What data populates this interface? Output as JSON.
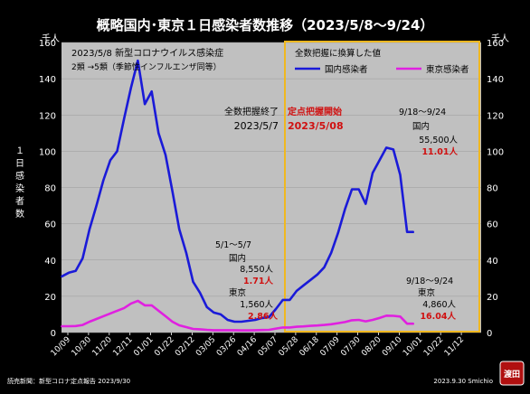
{
  "title": "概略国内･東京１日感染者数推移（2023/5/8〜9/24）",
  "unit_left": "千人",
  "unit_right": "千人",
  "ylabel": "１日感染者数",
  "note_top_left_1": "2023/5/8 新型コロナウイルス感染症",
  "note_top_left_2": "2類 →5類（季節性インフルエンザ同等）",
  "note_end_label": "全数把握終了",
  "note_end_date": "2023/5/7",
  "note_start_label": "定点把握開始",
  "note_start_date": "2023/5/08",
  "legend": {
    "title": "全数把握に換算した値",
    "national": "国内感染者",
    "tokyo": "東京感染者"
  },
  "annotation_may": {
    "period": "5/1〜5/7",
    "national_label": "国内",
    "national_value": "8,550人",
    "national_ratio": "1.71人",
    "tokyo_label": "東京",
    "tokyo_value": "1,560人",
    "tokyo_ratio": "2.86人"
  },
  "annotation_sep_national": {
    "period": "9/18〜9/24",
    "label": "国内",
    "value": "55,500人",
    "ratio": "11.01人"
  },
  "annotation_sep_tokyo": {
    "period": "9/18〜9/24",
    "label": "東京",
    "value": "4,860人",
    "ratio": "16.04人"
  },
  "source": "読売新聞：新型コロナ定点報告  2023/9/30",
  "credit": "2023.9.30  Smichio",
  "stamp": "渡田",
  "colors": {
    "background": "#000000",
    "plot": "#c0c0c0",
    "national": "#1a1ad8",
    "tokyo": "#e020e0",
    "highlight_box": "#f0b820",
    "red_text": "#d01010"
  },
  "chart_data": {
    "type": "line",
    "x_tick_labels": [
      "10/09",
      "10/30",
      "11/20",
      "12/11",
      "01/01",
      "01/22",
      "02/12",
      "03/05",
      "03/26",
      "04/16",
      "05/07",
      "05/28",
      "06/18",
      "07/09",
      "07/30",
      "08/20",
      "09/10",
      "10/01",
      "10/22",
      "11/12"
    ],
    "ylim": [
      0,
      160
    ],
    "yticks": [
      0,
      20,
      40,
      60,
      80,
      100,
      120,
      140,
      160
    ],
    "y_unit": "千人",
    "series": [
      {
        "name": "国内感染者",
        "x": [
          "10/03",
          "10/10",
          "10/17",
          "10/24",
          "10/31",
          "11/07",
          "11/14",
          "11/21",
          "11/28",
          "12/05",
          "12/12",
          "12/19",
          "12/26",
          "01/02",
          "01/09",
          "01/16",
          "01/23",
          "01/30",
          "02/06",
          "02/13",
          "02/20",
          "02/27",
          "03/06",
          "03/13",
          "03/20",
          "03/27",
          "04/03",
          "04/10",
          "04/17",
          "04/24",
          "05/01",
          "05/08",
          "05/15",
          "05/22",
          "05/29",
          "06/05",
          "06/12",
          "06/19",
          "06/26",
          "07/03",
          "07/10",
          "07/17",
          "07/24",
          "07/31",
          "08/07",
          "08/14",
          "08/21",
          "08/28",
          "09/04",
          "09/11",
          "09/18",
          "09/24"
        ],
        "values": [
          31,
          33,
          34,
          41,
          57,
          70,
          84,
          95,
          100,
          118,
          135,
          150,
          126,
          133,
          110,
          98,
          78,
          57,
          44,
          28,
          22,
          14,
          11,
          10,
          7,
          6,
          6,
          6.5,
          7,
          8,
          8.5,
          13,
          18,
          18,
          23,
          26,
          29,
          32,
          36,
          44,
          55,
          68,
          79,
          79,
          71,
          88,
          95,
          102,
          101,
          87,
          55.5,
          55.5
        ]
      },
      {
        "name": "東京感染者",
        "x": [
          "10/03",
          "10/10",
          "10/17",
          "10/24",
          "10/31",
          "11/07",
          "11/14",
          "11/21",
          "11/28",
          "12/05",
          "12/12",
          "12/19",
          "12/26",
          "01/02",
          "01/09",
          "01/16",
          "01/23",
          "01/30",
          "02/06",
          "02/13",
          "02/20",
          "02/27",
          "03/06",
          "03/13",
          "03/20",
          "03/27",
          "04/03",
          "04/10",
          "04/17",
          "04/24",
          "05/01",
          "05/08",
          "05/15",
          "05/22",
          "05/29",
          "06/05",
          "06/12",
          "06/19",
          "06/26",
          "07/03",
          "07/10",
          "07/17",
          "07/24",
          "07/31",
          "08/07",
          "08/14",
          "08/21",
          "08/28",
          "09/04",
          "09/11",
          "09/18",
          "09/24"
        ],
        "values": [
          3.5,
          3.5,
          3.6,
          4.2,
          6,
          7.5,
          9,
          10.5,
          12,
          13.5,
          16,
          17.5,
          15,
          15,
          12,
          9,
          6,
          4,
          3,
          2,
          1.8,
          1.5,
          1.3,
          1.3,
          1.3,
          1.3,
          1.2,
          1.2,
          1.3,
          1.4,
          1.5,
          2.2,
          2.8,
          2.8,
          3.2,
          3.4,
          3.7,
          3.9,
          4.2,
          4.6,
          5.2,
          5.8,
          6.8,
          7,
          6.2,
          7,
          8,
          9.3,
          9.2,
          8.8,
          4.86,
          4.86
        ]
      }
    ]
  }
}
